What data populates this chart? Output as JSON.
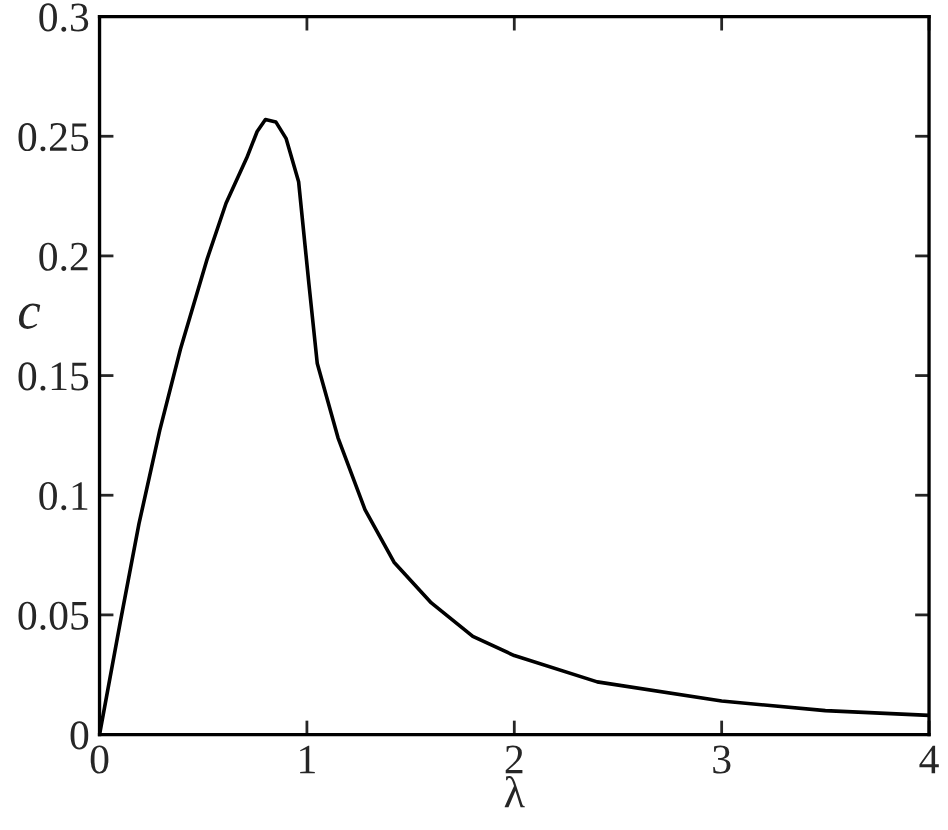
{
  "chart_data": {
    "type": "line",
    "xlabel": "λ",
    "ylabel": "c",
    "x": [
      0,
      0.1,
      0.19,
      0.29,
      0.39,
      0.52,
      0.61,
      0.71,
      0.76,
      0.8,
      0.85,
      0.9,
      0.96,
      1.01,
      1.05,
      1.15,
      1.28,
      1.42,
      1.6,
      1.8,
      2.0,
      2.4,
      3.0,
      3.5,
      4.0
    ],
    "series": [
      {
        "color": "#000000",
        "values": [
          0,
          0.047,
          0.088,
          0.127,
          0.161,
          0.199,
          0.222,
          0.241,
          0.252,
          0.257,
          0.256,
          0.249,
          0.231,
          0.188,
          0.155,
          0.124,
          0.094,
          0.072,
          0.055,
          0.041,
          0.033,
          0.022,
          0.014,
          0.01,
          0.008
        ]
      }
    ],
    "xlim": [
      0,
      4
    ],
    "ylim": [
      0,
      0.3
    ],
    "xticks": [
      0,
      1,
      2,
      3,
      4
    ],
    "yticks": [
      0,
      0.05,
      0.1,
      0.15,
      0.2,
      0.25,
      0.3
    ],
    "grid": false,
    "legend": false,
    "marker": "none",
    "line_style": "solid"
  }
}
